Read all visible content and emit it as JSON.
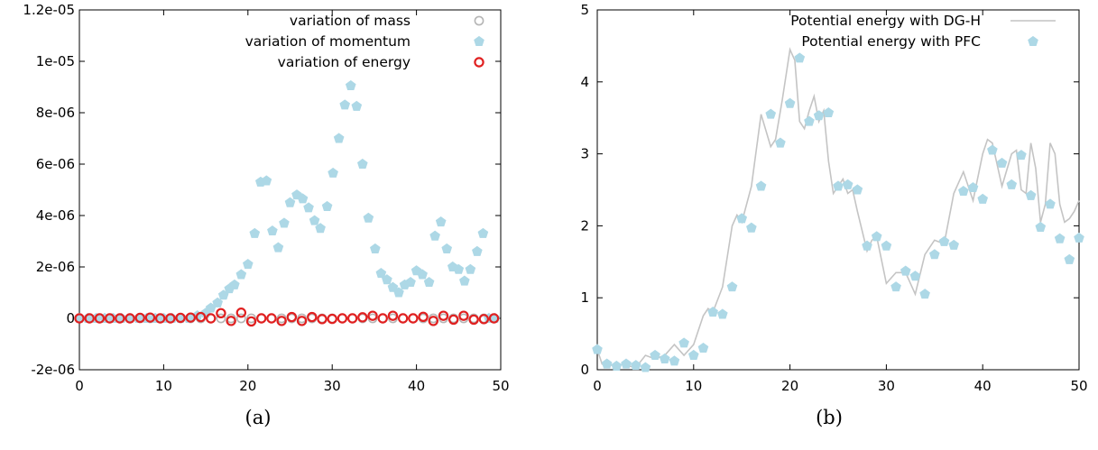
{
  "chart_data": [
    {
      "type": "scatter",
      "panel_label": "(a)",
      "xlim": [
        0,
        50
      ],
      "ylim": [
        -2e-06,
        1.2e-05
      ],
      "xticks": [
        "0",
        "10",
        "20",
        "30",
        "40",
        "50"
      ],
      "yticks": [
        "-2e-06",
        "0",
        "2e-06",
        "4e-06",
        "6e-06",
        "8e-06",
        "1e-05",
        "1.2e-05"
      ],
      "grid": false,
      "legend_position": "top-right",
      "series": [
        {
          "name": "variation of mass",
          "marker": "open-circle",
          "color": "#b5b5b5",
          "x": [
            0,
            1.2,
            2.4,
            3.6,
            4.8,
            6,
            7.2,
            8.4,
            9.6,
            10.8,
            12,
            13.2,
            14.4,
            15.6,
            16.8,
            18,
            19.2,
            20.4,
            21.6,
            22.8,
            24,
            25.2,
            26.4,
            27.6,
            28.8,
            30,
            31.2,
            32.4,
            33.6,
            34.8,
            36,
            37.2,
            38.4,
            39.6,
            40.8,
            42,
            43.2,
            44.4,
            45.6,
            46.8,
            48,
            49.2
          ],
          "y": [
            0,
            0,
            0,
            0,
            0,
            0,
            0,
            0,
            0,
            0,
            0,
            0,
            0,
            0,
            0,
            0,
            0,
            0,
            0,
            0,
            0,
            0,
            0,
            0,
            0,
            0,
            0,
            0,
            0,
            0,
            0,
            0,
            0,
            0,
            0,
            0,
            0,
            0,
            0,
            0,
            0,
            0
          ]
        },
        {
          "name": "variation of momentum",
          "marker": "filled-pentagon",
          "color": "#add8e6",
          "x": [
            0,
            1,
            2,
            3,
            4,
            5,
            6,
            7,
            8,
            9,
            10,
            11,
            12,
            13,
            14,
            15,
            15.6,
            16.4,
            17.1,
            17.8,
            18.4,
            19.2,
            20,
            20.8,
            21.5,
            22.2,
            22.9,
            23.6,
            24.3,
            25,
            25.8,
            26.5,
            27.2,
            27.9,
            28.6,
            29.4,
            30.1,
            30.8,
            31.5,
            32.2,
            32.9,
            33.6,
            34.3,
            35.1,
            35.8,
            36.5,
            37.2,
            37.9,
            38.6,
            39.3,
            40,
            40.7,
            41.5,
            42.2,
            42.9,
            43.6,
            44.3,
            45,
            45.7,
            46.4,
            47.2,
            47.9,
            48.6,
            49.3
          ],
          "y": [
            0,
            0,
            0,
            0,
            0,
            0,
            0,
            0,
            0,
            0,
            0,
            0,
            0,
            0,
            1e-07,
            2e-07,
            4e-07,
            6e-07,
            9e-07,
            1.15e-06,
            1.3e-06,
            1.7e-06,
            2.1e-06,
            3.3e-06,
            5.3e-06,
            5.35e-06,
            3.4e-06,
            2.75e-06,
            3.7e-06,
            4.5e-06,
            4.8e-06,
            4.65e-06,
            4.3e-06,
            3.8e-06,
            3.5e-06,
            4.35e-06,
            5.65e-06,
            7e-06,
            8.3e-06,
            9.05e-06,
            8.25e-06,
            6e-06,
            3.9e-06,
            2.7e-06,
            1.75e-06,
            1.5e-06,
            1.2e-06,
            1e-06,
            1.3e-06,
            1.4e-06,
            1.85e-06,
            1.7e-06,
            1.4e-06,
            3.2e-06,
            3.75e-06,
            2.7e-06,
            2e-06,
            1.9e-06,
            1.45e-06,
            1.9e-06,
            2.6e-06,
            3.3e-06,
            0,
            0
          ]
        },
        {
          "name": "variation of energy",
          "marker": "open-circle",
          "color": "#e02020",
          "x": [
            0,
            1.2,
            2.4,
            3.6,
            4.8,
            6,
            7.2,
            8.4,
            9.6,
            10.8,
            12,
            13.2,
            14.4,
            15.6,
            16.8,
            18,
            19.2,
            20.4,
            21.6,
            22.8,
            24,
            25.2,
            26.4,
            27.6,
            28.8,
            30,
            31.2,
            32.4,
            33.6,
            34.8,
            36,
            37.2,
            38.4,
            39.6,
            40.8,
            42,
            43.2,
            44.4,
            45.6,
            46.8,
            48,
            49.2
          ],
          "y": [
            0,
            0,
            0,
            0,
            0,
            0,
            2e-08,
            3e-08,
            0,
            0,
            2e-08,
            3e-08,
            5e-08,
            0,
            2e-07,
            -1e-07,
            2.2e-07,
            -1.2e-07,
            0,
            0,
            -1e-07,
            5e-08,
            -1e-07,
            5e-08,
            -3e-08,
            -2e-08,
            0,
            0,
            4e-08,
            1e-07,
            0,
            1e-07,
            0,
            0,
            6e-08,
            -1e-07,
            1e-07,
            -5e-08,
            1e-07,
            -5e-08,
            -3e-08,
            0
          ]
        }
      ]
    },
    {
      "type": "line",
      "panel_label": "(b)",
      "xlim": [
        0,
        50
      ],
      "ylim": [
        0,
        5
      ],
      "xticks": [
        "0",
        "10",
        "20",
        "30",
        "40",
        "50"
      ],
      "yticks": [
        "0",
        "1",
        "2",
        "3",
        "4",
        "5"
      ],
      "grid": false,
      "legend_position": "top-right",
      "series": [
        {
          "name": "Potential energy with DG-H",
          "marker": "line",
          "color": "#c4c4c4",
          "x": [
            0,
            0.5,
            1,
            2,
            3,
            4,
            5,
            6,
            7,
            8,
            9,
            10,
            11,
            11.5,
            12,
            13,
            14,
            14.5,
            15,
            16,
            17,
            18,
            18.5,
            19.2,
            20,
            20.5,
            21,
            21.5,
            22,
            22.5,
            23,
            23.5,
            24,
            24.5,
            25,
            25.5,
            26,
            26.5,
            27,
            28,
            28.5,
            29,
            30,
            31,
            32,
            33,
            34,
            35,
            36,
            37,
            38,
            39,
            40,
            40.5,
            41,
            42,
            43,
            43.5,
            44,
            44.5,
            45,
            45.5,
            46,
            46.5,
            47,
            47.5,
            48,
            48.5,
            49,
            49.5,
            50
          ],
          "y": [
            0.28,
            0.08,
            0.05,
            0.08,
            0.06,
            0.03,
            0.2,
            0.15,
            0.2,
            0.35,
            0.2,
            0.35,
            0.75,
            0.85,
            0.8,
            1.15,
            2.0,
            2.15,
            2.05,
            2.55,
            3.55,
            3.1,
            3.2,
            3.75,
            4.45,
            4.3,
            3.45,
            3.35,
            3.6,
            3.8,
            3.45,
            3.6,
            2.9,
            2.45,
            2.55,
            2.65,
            2.45,
            2.5,
            2.2,
            1.65,
            1.8,
            1.85,
            1.2,
            1.35,
            1.35,
            1.05,
            1.6,
            1.8,
            1.75,
            2.45,
            2.75,
            2.35,
            3.0,
            3.2,
            3.15,
            2.55,
            3.0,
            3.05,
            2.5,
            2.45,
            3.15,
            2.8,
            2.05,
            2.3,
            3.15,
            3.0,
            2.3,
            2.05,
            2.1,
            2.2,
            2.35
          ]
        },
        {
          "name": "Potential energy with PFC",
          "marker": "filled-pentagon",
          "color": "#add8e6",
          "x": [
            0,
            1,
            2,
            3,
            4,
            5,
            6,
            7,
            8,
            9,
            10,
            11,
            12,
            13,
            14,
            15,
            16,
            17,
            18,
            19,
            20,
            21,
            22,
            23,
            24,
            25,
            26,
            27,
            28,
            29,
            30,
            31,
            32,
            33,
            34,
            35,
            36,
            37,
            38,
            39,
            40,
            41,
            42,
            43,
            44,
            45,
            46,
            47,
            48,
            49,
            50
          ],
          "y": [
            0.28,
            0.08,
            0.05,
            0.08,
            0.06,
            0.03,
            0.2,
            0.15,
            0.12,
            0.37,
            0.2,
            0.3,
            0.8,
            0.77,
            1.15,
            2.1,
            1.97,
            2.55,
            3.55,
            3.15,
            3.7,
            4.33,
            3.45,
            3.53,
            3.57,
            2.55,
            2.57,
            2.5,
            1.72,
            1.85,
            1.72,
            1.15,
            1.37,
            1.3,
            1.05,
            1.6,
            1.78,
            1.73,
            2.48,
            2.53,
            2.37,
            3.05,
            2.87,
            2.57,
            2.98,
            2.42,
            1.98,
            2.3,
            1.82,
            1.53,
            1.83
          ]
        }
      ]
    }
  ]
}
